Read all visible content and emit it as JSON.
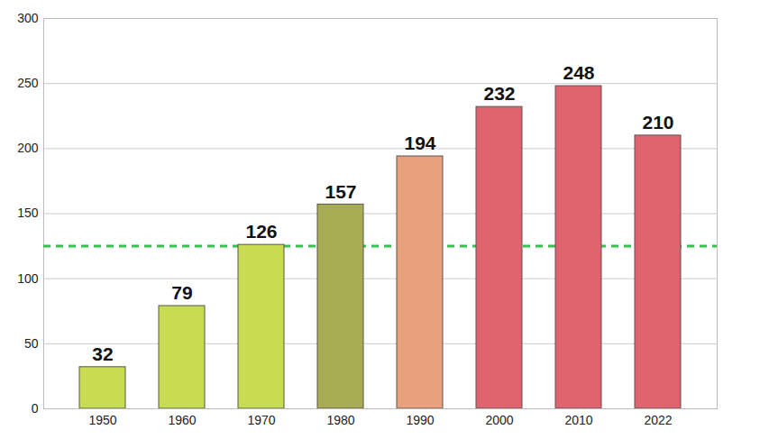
{
  "chart_data": {
    "type": "bar",
    "categories": [
      "1950",
      "1960",
      "1970",
      "1980",
      "1990",
      "2000",
      "2010",
      "2022"
    ],
    "values": [
      32,
      79,
      126,
      157,
      194,
      232,
      248,
      210
    ],
    "colors": [
      "#c8dc52",
      "#c8dc52",
      "#c8dc52",
      "#a9ac55",
      "#e9a07c",
      "#e06470",
      "#e06470",
      "#e06470"
    ],
    "ylim": [
      0,
      300
    ],
    "yticks": [
      0,
      50,
      100,
      150,
      200,
      250,
      300
    ],
    "grid": true,
    "data_labels": true,
    "reference_line": {
      "value": 125,
      "color": "#33c24a",
      "line_style": "dashed"
    }
  }
}
